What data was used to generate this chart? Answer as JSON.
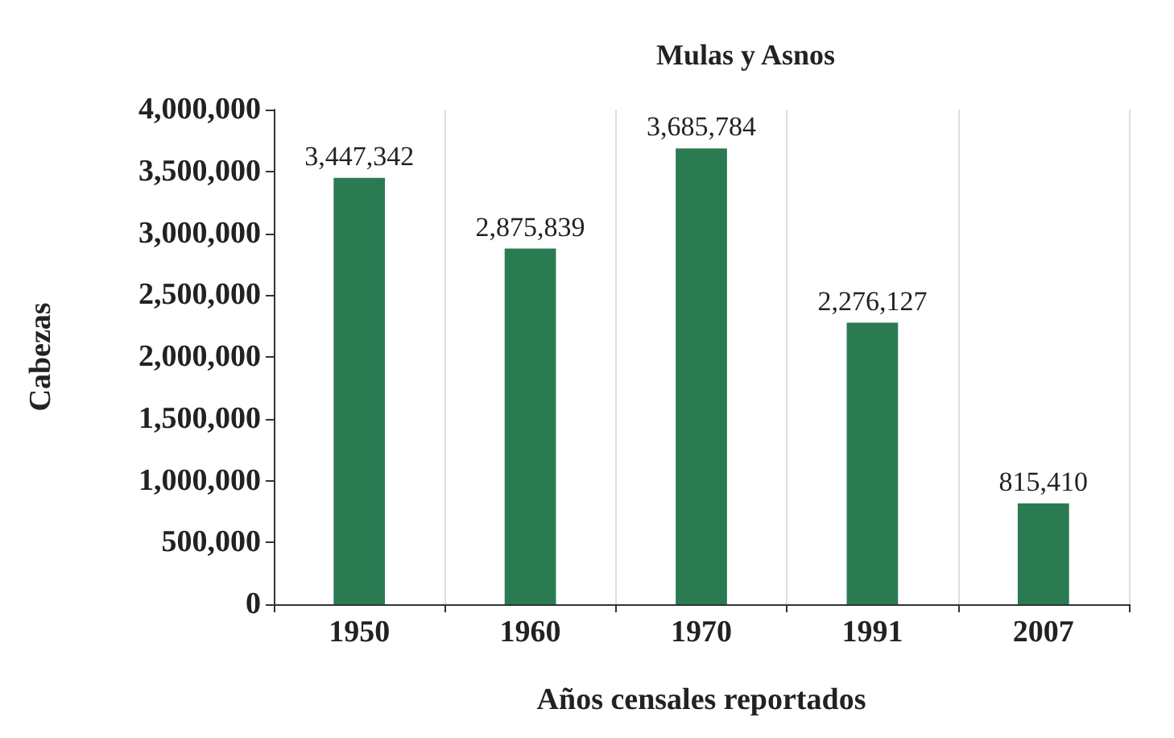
{
  "chart_data": {
    "type": "bar",
    "title": "Mulas y Asnos",
    "xlabel": "Años censales reportados",
    "ylabel": "Cabezas",
    "categories": [
      "1950",
      "1960",
      "1970",
      "1991",
      "2007"
    ],
    "values": [
      3447342,
      2875839,
      3685784,
      2276127,
      815410
    ],
    "value_labels": [
      "3,447,342",
      "2,875,839",
      "3,685,784",
      "2,276,127",
      "815,410"
    ],
    "color": "#2a7a52",
    "ylim": [
      0,
      4000000
    ],
    "yticks": [
      {
        "value": 0,
        "label": "0"
      },
      {
        "value": 500000,
        "label": "500,000"
      },
      {
        "value": 1000000,
        "label": "1,000,000"
      },
      {
        "value": 1500000,
        "label": "1,500,000"
      },
      {
        "value": 2000000,
        "label": "2,000,000"
      },
      {
        "value": 2500000,
        "label": "2,500,000"
      },
      {
        "value": 3000000,
        "label": "3,000,000"
      },
      {
        "value": 3500000,
        "label": "3,500,000"
      },
      {
        "value": 4000000,
        "label": "4,000,000"
      }
    ],
    "grid": "x"
  }
}
